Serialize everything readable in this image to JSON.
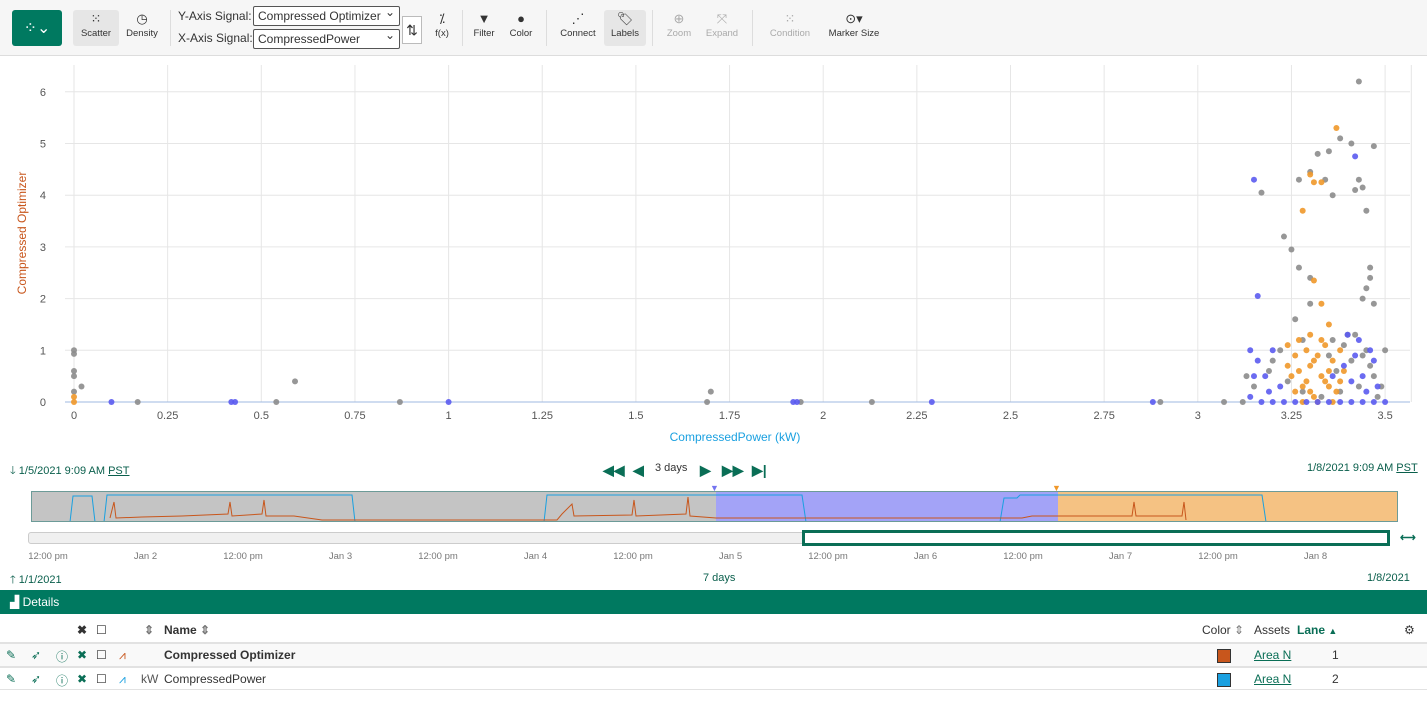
{
  "toolbar": {
    "scatter": "Scatter",
    "density": "Density",
    "y_label": "Y-Axis Signal:",
    "y_value": "Compressed Optimizer",
    "x_label": "X-Axis Signal:",
    "x_value": "CompressedPower",
    "fx": "f(x)",
    "filter": "Filter",
    "color": "Color",
    "connect": "Connect",
    "labels": "Labels",
    "zoom": "Zoom",
    "expand": "Expand",
    "condition": "Condition",
    "marker_size": "Marker Size"
  },
  "chart_data": {
    "type": "scatter",
    "xlabel": "CompressedPower (kW)",
    "ylabel": "Compressed Optimizer",
    "xlim": [
      -0.03,
      3.57
    ],
    "ylim": [
      0,
      6.5
    ],
    "xticks": [
      "0",
      "0.25",
      "0.5",
      "0.75",
      "1",
      "1.25",
      "1.5",
      "1.75",
      "2",
      "2.25",
      "2.5",
      "2.75",
      "3",
      "3.25",
      "3.5"
    ],
    "yticks": [
      "0",
      "1",
      "2",
      "3",
      "4",
      "5",
      "6"
    ],
    "grid": true,
    "series": [
      {
        "color": "#8c8c8c",
        "points": [
          [
            0,
            1.0
          ],
          [
            0,
            0.93
          ],
          [
            0,
            0.6
          ],
          [
            0,
            0.5
          ],
          [
            0,
            0.2
          ],
          [
            0.02,
            0.3
          ],
          [
            0.17,
            0
          ],
          [
            0.54,
            0
          ],
          [
            0.59,
            0.4
          ],
          [
            0.87,
            0
          ],
          [
            1.7,
            0.2
          ],
          [
            1.69,
            0
          ],
          [
            1.94,
            0
          ],
          [
            2.13,
            0
          ],
          [
            2.9,
            0
          ],
          [
            3.07,
            0
          ],
          [
            3.12,
            0
          ],
          [
            3.17,
            4.05
          ],
          [
            3.23,
            3.2
          ],
          [
            3.25,
            2.95
          ],
          [
            3.27,
            4.3
          ],
          [
            3.3,
            4.45
          ],
          [
            3.32,
            4.8
          ],
          [
            3.35,
            4.85
          ],
          [
            3.34,
            4.3
          ],
          [
            3.38,
            5.1
          ],
          [
            3.43,
            6.2
          ],
          [
            3.47,
            4.95
          ],
          [
            3.42,
            4.1
          ],
          [
            3.44,
            4.15
          ],
          [
            3.45,
            3.7
          ],
          [
            3.43,
            4.3
          ],
          [
            3.41,
            5.0
          ],
          [
            3.46,
            2.4
          ],
          [
            3.45,
            2.2
          ],
          [
            3.47,
            1.9
          ],
          [
            3.44,
            2.0
          ],
          [
            3.4,
            1.3
          ],
          [
            3.3,
            2.4
          ],
          [
            3.3,
            1.9
          ],
          [
            3.36,
            4.0
          ],
          [
            3.28,
            1.2
          ],
          [
            3.46,
            2.6
          ],
          [
            3.27,
            2.6
          ],
          [
            3.13,
            0.5
          ],
          [
            3.15,
            0.3
          ],
          [
            3.2,
            0.8
          ],
          [
            3.22,
            1.0
          ],
          [
            3.24,
            0.4
          ],
          [
            3.26,
            1.6
          ],
          [
            3.28,
            0.2
          ],
          [
            3.35,
            0.9
          ],
          [
            3.37,
            0.6
          ],
          [
            3.39,
            1.1
          ],
          [
            3.41,
            0.8
          ],
          [
            3.43,
            0.3
          ],
          [
            3.45,
            1.0
          ],
          [
            3.47,
            0.5
          ],
          [
            3.48,
            0.1
          ],
          [
            3.5,
            1.0
          ],
          [
            3.49,
            0.3
          ],
          [
            3.38,
            0.2
          ],
          [
            3.33,
            0.1
          ],
          [
            3.19,
            0.6
          ],
          [
            3.42,
            1.3
          ],
          [
            3.46,
            0.7
          ],
          [
            3.36,
            1.2
          ],
          [
            3.44,
            0.9
          ]
        ]
      },
      {
        "color": "#f0982a",
        "points": [
          [
            0,
            0.1
          ],
          [
            0,
            0
          ],
          [
            3.37,
            5.3
          ],
          [
            3.3,
            4.4
          ],
          [
            3.31,
            4.25
          ],
          [
            3.33,
            4.25
          ],
          [
            3.28,
            3.7
          ],
          [
            3.31,
            2.35
          ],
          [
            3.33,
            1.9
          ],
          [
            3.3,
            1.3
          ],
          [
            3.35,
            1.5
          ],
          [
            3.24,
            1.1
          ],
          [
            3.26,
            0.9
          ],
          [
            3.27,
            0.6
          ],
          [
            3.28,
            0.3
          ],
          [
            3.29,
            1.0
          ],
          [
            3.3,
            0.7
          ],
          [
            3.31,
            0.1
          ],
          [
            3.32,
            0.9
          ],
          [
            3.33,
            0.5
          ],
          [
            3.34,
            1.1
          ],
          [
            3.35,
            0.3
          ],
          [
            3.36,
            0.8
          ],
          [
            3.37,
            0.2
          ],
          [
            3.38,
            1.0
          ],
          [
            3.25,
            0.5
          ],
          [
            3.27,
            1.2
          ],
          [
            3.29,
            0.4
          ],
          [
            3.31,
            0.8
          ],
          [
            3.33,
            1.2
          ],
          [
            3.35,
            0.6
          ],
          [
            3.28,
            0
          ],
          [
            3.32,
            0
          ],
          [
            3.36,
            0
          ],
          [
            3.3,
            0.2
          ],
          [
            3.34,
            0.4
          ],
          [
            3.26,
            0.2
          ],
          [
            3.39,
            0.6
          ],
          [
            3.24,
            0.7
          ],
          [
            3.38,
            0.4
          ]
        ]
      },
      {
        "color": "#5b5bf0",
        "points": [
          [
            0.1,
            0
          ],
          [
            0.42,
            0
          ],
          [
            0.43,
            0
          ],
          [
            1.0,
            0
          ],
          [
            1.92,
            0
          ],
          [
            1.93,
            0
          ],
          [
            2.29,
            0
          ],
          [
            2.88,
            0
          ],
          [
            3.15,
            4.3
          ],
          [
            3.16,
            2.05
          ],
          [
            3.42,
            4.75
          ],
          [
            3.14,
            1.0
          ],
          [
            3.16,
            0.8
          ],
          [
            3.18,
            0.5
          ],
          [
            3.2,
            1.0
          ],
          [
            3.22,
            0.3
          ],
          [
            3.14,
            0.1
          ],
          [
            3.17,
            0
          ],
          [
            3.2,
            0
          ],
          [
            3.23,
            0
          ],
          [
            3.26,
            0
          ],
          [
            3.29,
            0
          ],
          [
            3.32,
            0
          ],
          [
            3.35,
            0
          ],
          [
            3.38,
            0
          ],
          [
            3.41,
            0
          ],
          [
            3.44,
            0
          ],
          [
            3.47,
            0
          ],
          [
            3.5,
            0
          ],
          [
            3.4,
            1.3
          ],
          [
            3.42,
            0.9
          ],
          [
            3.44,
            0.5
          ],
          [
            3.46,
            1.0
          ],
          [
            3.48,
            0.3
          ],
          [
            3.43,
            1.2
          ],
          [
            3.39,
            0.7
          ],
          [
            3.45,
            0.2
          ],
          [
            3.41,
            0.4
          ],
          [
            3.19,
            0.2
          ],
          [
            3.15,
            0.5
          ],
          [
            3.47,
            0.8
          ],
          [
            3.36,
            0.5
          ]
        ]
      }
    ]
  },
  "nav": {
    "start": "1/5/2021 9:09 AM",
    "end": "1/8/2021 9:09 AM",
    "tz": "PST",
    "span": "3 days",
    "range_start": "1/1/2021",
    "range_end": "1/8/2021",
    "range_span": "7 days",
    "ticks": [
      "12:00 pm",
      "Jan 2",
      "12:00 pm",
      "Jan 3",
      "12:00 pm",
      "Jan 4",
      "12:00 pm",
      "Jan 5",
      "12:00 pm",
      "Jan 6",
      "12:00 pm",
      "Jan 7",
      "12:00 pm",
      "Jan 8"
    ]
  },
  "details": {
    "title": "Details",
    "col_name": "Name",
    "col_color": "Color",
    "col_assets": "Assets",
    "col_lane": "Lane",
    "rows": [
      {
        "name": "Compressed Optimizer",
        "unit": "",
        "color": "#c8561c",
        "asset": "Area N",
        "lane": "1"
      },
      {
        "name": "CompressedPower",
        "unit": "kW",
        "color": "#1aa0e0",
        "asset": "Area N",
        "lane": "2"
      }
    ]
  }
}
